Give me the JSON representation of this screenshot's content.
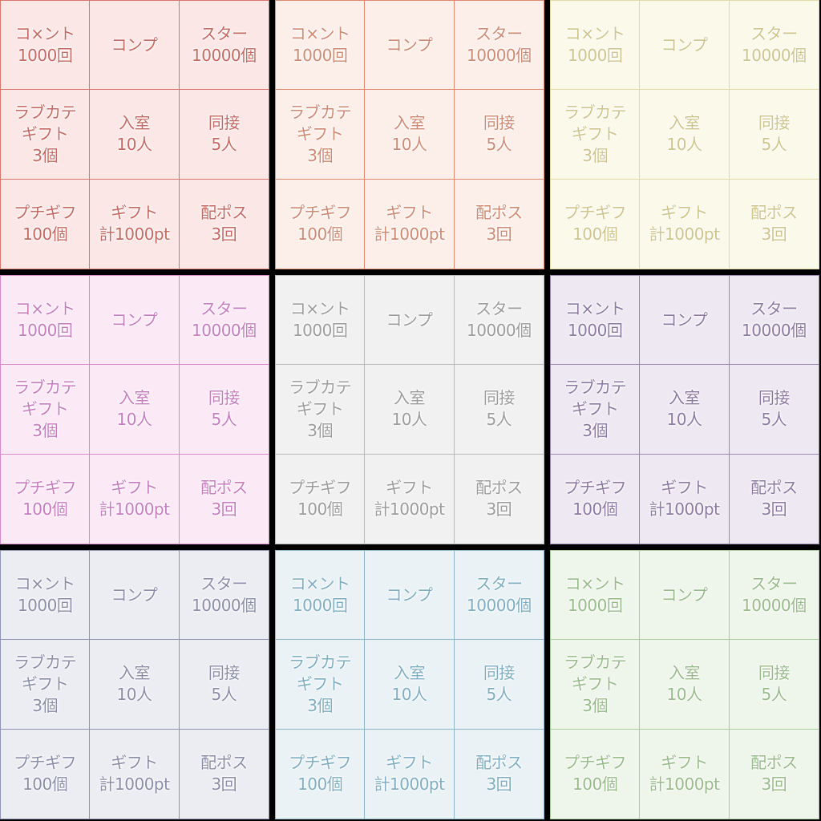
{
  "boards": [
    {
      "theme": "red",
      "bg": "#fbe7e6",
      "line": "#d9766c",
      "text": "#c46a63"
    },
    {
      "theme": "orange",
      "bg": "#fcefe9",
      "line": "#dd8a6e",
      "text": "#cf8a73"
    },
    {
      "theme": "yellow",
      "bg": "#fbf9ea",
      "line": "#e2dca4",
      "text": "#cfc58a"
    },
    {
      "theme": "pink",
      "bg": "#fbe9f6",
      "line": "#d98acd",
      "text": "#c77cc0"
    },
    {
      "theme": "gray",
      "bg": "#f1f1f1",
      "line": "#b8b8b8",
      "text": "#9c9c9c"
    },
    {
      "theme": "purple",
      "bg": "#eee8f2",
      "line": "#9c86b3",
      "text": "#8d7aa2"
    },
    {
      "theme": "navy",
      "bg": "#ececf3",
      "line": "#8e93b5",
      "text": "#8a8ea8"
    },
    {
      "theme": "blue",
      "bg": "#eaf2f6",
      "line": "#8db8cc",
      "text": "#7fadc2"
    },
    {
      "theme": "green",
      "bg": "#eef5ea",
      "line": "#a9cc9a",
      "text": "#98bb8a"
    }
  ],
  "cells": [
    {
      "line1": "コ×ント",
      "line2": "1000回"
    },
    {
      "line1": "コンプ",
      "line2": ""
    },
    {
      "line1": "スター",
      "line2": "10000個"
    },
    {
      "line1": "ラブカテ",
      "line2": "ギフト",
      "line3": "3個"
    },
    {
      "line1": "入室",
      "line2": "10人"
    },
    {
      "line1": "同接",
      "line2": "5人"
    },
    {
      "line1": "プチギフ",
      "line2": "100個"
    },
    {
      "line1": "ギフト",
      "line2": "計1000pt"
    },
    {
      "line1": "配ポス",
      "line2": "3回"
    }
  ]
}
